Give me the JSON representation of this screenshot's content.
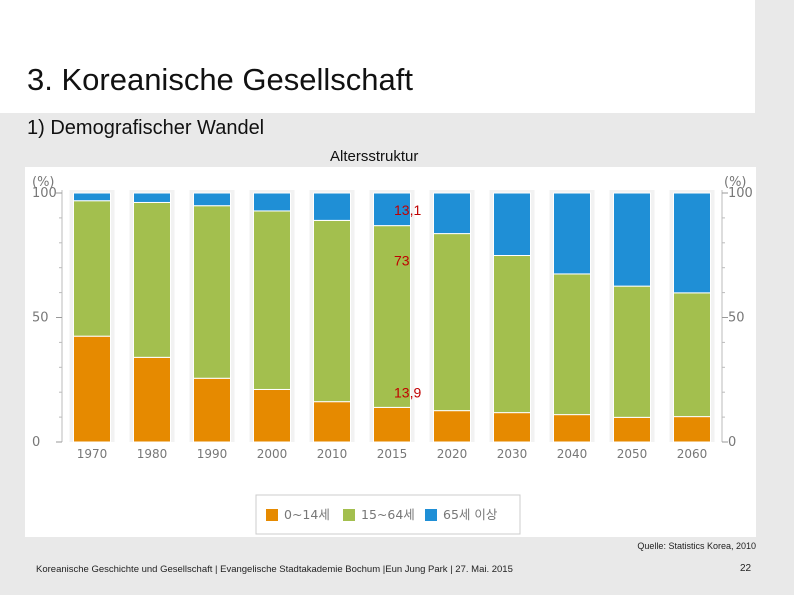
{
  "slide": {
    "title": "3. Koreanische Gesellschaft",
    "subtitle": "1) Demografischer Wandel",
    "chart_heading": "Altersstruktur",
    "source": "Quelle: Statistics Korea, 2010",
    "footer": "Koreanische Geschichte und Gesellschaft | Evangelische Stadtakademie Bochum |Eun Jung Park | 27. Mai. 2015",
    "page_number": "22"
  },
  "chart_data": {
    "type": "bar",
    "stacked": true,
    "categories": [
      "1970",
      "1980",
      "1990",
      "2000",
      "2010",
      "2015",
      "2020",
      "2030",
      "2040",
      "2050",
      "2060"
    ],
    "series": [
      {
        "name": "0~14세",
        "color": "#e68a00",
        "values": [
          42.5,
          34,
          25.6,
          21.1,
          16.2,
          13.9,
          12.6,
          11.8,
          11.0,
          9.9,
          10.2
        ]
      },
      {
        "name": "15~64세",
        "color": "#a3bf4e",
        "values": [
          54.4,
          62.2,
          69.3,
          71.7,
          72.8,
          73,
          71.1,
          63.1,
          56.5,
          52.7,
          49.7
        ]
      },
      {
        "name": "65세 이상",
        "color": "#1f8fd6",
        "values": [
          3.1,
          3.8,
          5.1,
          7.2,
          11.0,
          13.1,
          16.3,
          25.1,
          32.5,
          37.4,
          40.1
        ]
      }
    ],
    "ylim": [
      0,
      100
    ],
    "yticks": [
      "0",
      "50",
      "100"
    ],
    "y_unit_left": "(%)",
    "y_unit_right": "(%)",
    "annotations": [
      {
        "category": "2015",
        "series": "65세 이상",
        "text": "13,1"
      },
      {
        "category": "2015",
        "series": "15~64세",
        "text": "73"
      },
      {
        "category": "2015",
        "series": "0~14세",
        "text": "13,9"
      }
    ],
    "annotation_color": "#c00000",
    "legend_position": "bottom-center"
  }
}
